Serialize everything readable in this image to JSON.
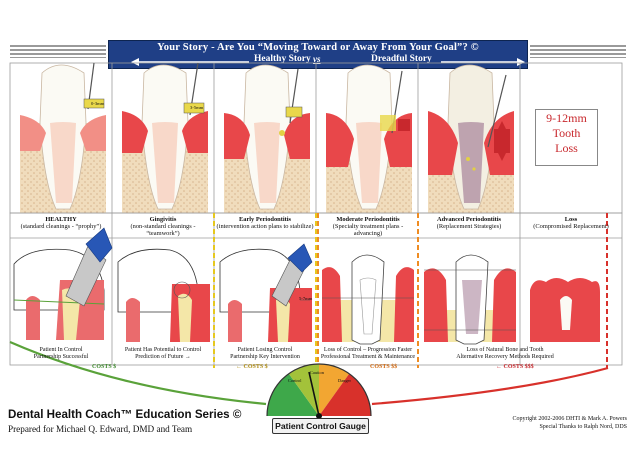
{
  "banner": {
    "title": "Your Story - Are You “Moving Toward or Away From Your Goal”? ©",
    "left": "Healthy Story",
    "vs": "vs",
    "right": "Dreadful Story"
  },
  "loss_box": {
    "line1": "9-12mm",
    "line2": "Tooth",
    "line3": "Loss"
  },
  "stages": [
    {
      "title": "HEALTHY",
      "subtitle": "(standard cleanings - “prophy”)",
      "caption_1": "Patient In Control",
      "caption_2": "Partnership Successful"
    },
    {
      "title": "Gingivitis",
      "subtitle": "(non-standard cleanings - “teamwork”)",
      "caption_1": "Patient Has Potential to Control",
      "caption_2": "Prediction of Future →"
    },
    {
      "title": "Early Periodontitis",
      "subtitle": "(intervention action plans to stabilize)",
      "caption_1": "Patient Losing Control",
      "caption_2": "Partnership Key Intervention"
    },
    {
      "title": "Moderate Periodontitis",
      "subtitle": "(Specialty treatment plans - advancing)",
      "caption_1": "Loss of Control – Progression Faster",
      "caption_2": "Professional Treatment & Maintenance"
    },
    {
      "title": "Advanced Periodontitis",
      "subtitle": "(Replacement Strategies)",
      "caption_1": "Loss of Natural Bone and Tooth",
      "caption_2": "Alternative Recovery Methods Required"
    },
    {
      "title": "Loss",
      "subtitle": "(Compromised Replacement)",
      "caption_1": "",
      "caption_2": ""
    }
  ],
  "costs": {
    "low": "COSTS $",
    "mid_small": "← COSTS $",
    "mid": "COSTS $$",
    "high": "← COSTS $$$"
  },
  "probe_labels": {
    "p1": "0-3mm",
    "p2": "3-5mm",
    "p3": "5-7mm"
  },
  "gauge": {
    "label": "Patient Control Gauge",
    "tick_labels": [
      "Control",
      "Caution",
      "Danger"
    ]
  },
  "footer": {
    "brand": "Dental Health Coach™ Education Series ©",
    "prepared": "Prepared for Michael Q. Edward, DMD and Team",
    "copyright": "Copyright 2002-2006 DHTI & Mark A. Powers",
    "thanks": "Special Thanks to Ralph Nord, DDS"
  },
  "colors": {
    "banner": "#1f3f86",
    "gum": "#e8686a",
    "bone": "#f3e6a6",
    "enamel": "#ffffff",
    "gauge_green": "#3ea84a",
    "gauge_red": "#d8312b",
    "curve_green": "#5aa23a",
    "curve_red": "#d8312b"
  }
}
